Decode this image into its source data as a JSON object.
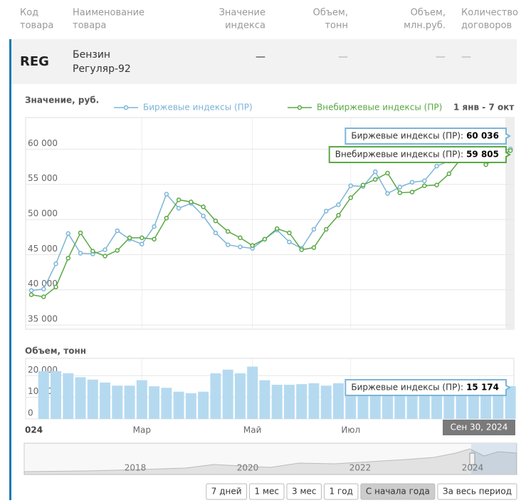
{
  "table": {
    "header": [
      [
        "Код",
        "товара"
      ],
      [
        "Наименование",
        "товара"
      ],
      [
        "Значение",
        "индекса"
      ],
      [
        "Объем,",
        "тонн"
      ],
      [
        "Объем,",
        "млн.руб."
      ],
      [
        "Количество",
        "договоров"
      ]
    ],
    "rows": [
      [
        "REG",
        [
          "Бензин",
          "Регуляр-92"
        ],
        "—",
        "—",
        "—",
        "—"
      ]
    ]
  },
  "chart_data": [
    {
      "type": "line",
      "title": "Значение, руб.",
      "period": "1 янв - 7 окт",
      "categories": [
        null,
        null,
        null,
        null,
        null,
        null,
        null,
        null,
        null,
        null,
        null,
        null,
        null,
        null,
        null,
        null,
        null,
        null,
        null,
        null,
        null,
        null,
        null,
        null,
        null,
        null,
        null,
        null,
        null,
        null,
        null,
        null,
        null,
        null,
        null,
        null,
        null,
        null,
        null,
        null
      ],
      "series": [
        {
          "name": "Биржевые индексы (ПР)",
          "tooltip_label": "Биржевые индексы (ПР):",
          "color": "#7cb5d8",
          "values": [
            39900,
            40100,
            43700,
            48000,
            45200,
            45100,
            45700,
            48400,
            47200,
            46500,
            49000,
            53600,
            51600,
            52300,
            50500,
            48100,
            46400,
            46100,
            45900,
            47200,
            48500,
            46800,
            45900,
            48600,
            51200,
            52100,
            54800,
            54700,
            56800,
            53700,
            54600,
            55300,
            55500,
            57600,
            58300,
            58900,
            59400,
            59400,
            59600,
            60036
          ],
          "value_labels": [
            null,
            null,
            null,
            null,
            null,
            null,
            null,
            null,
            null,
            null,
            null,
            null,
            null,
            null,
            null,
            null,
            null,
            null,
            null,
            null,
            null,
            null,
            null,
            null,
            null,
            null,
            null,
            null,
            null,
            null,
            null,
            null,
            null,
            null,
            null,
            null,
            null,
            null,
            null,
            "60 036"
          ]
        },
        {
          "name": "Внебиржевые индексы (ПР)",
          "tooltip_label": "Внебиржевые индексы (ПР):",
          "color": "#5ba845",
          "values": [
            39300,
            39000,
            40400,
            44500,
            48100,
            45500,
            44800,
            45600,
            47400,
            47400,
            47200,
            50200,
            52800,
            52500,
            51800,
            49800,
            48300,
            47400,
            46300,
            47200,
            48700,
            48100,
            45700,
            46000,
            48600,
            50600,
            53100,
            54900,
            55700,
            56600,
            53800,
            53900,
            54800,
            54900,
            56500,
            58700,
            59900,
            57800,
            58900,
            59805
          ],
          "value_labels": [
            null,
            null,
            null,
            null,
            null,
            null,
            null,
            null,
            null,
            null,
            null,
            null,
            null,
            null,
            null,
            null,
            null,
            null,
            null,
            null,
            null,
            null,
            null,
            null,
            null,
            null,
            null,
            null,
            null,
            null,
            null,
            null,
            null,
            null,
            null,
            null,
            null,
            null,
            null,
            "59 805"
          ]
        }
      ],
      "ylim": [
        34400,
        64500
      ],
      "yticks": [
        {
          "value": 35000,
          "label": "35 000"
        },
        {
          "value": 40000,
          "label": "40 000"
        },
        {
          "value": 45000,
          "label": "45 000"
        },
        {
          "value": 50000,
          "label": "50 000"
        },
        {
          "value": 55000,
          "label": "55 000"
        },
        {
          "value": 60000,
          "label": "60 000"
        }
      ],
      "grid": true
    },
    {
      "type": "bar",
      "title": "Объем, тонн",
      "categories": [
        "024",
        null,
        null,
        null,
        null,
        null,
        null,
        null,
        null,
        "Мар",
        null,
        null,
        null,
        null,
        null,
        null,
        null,
        null,
        "Май",
        null,
        null,
        null,
        null,
        null,
        null,
        null,
        "Июл",
        null,
        null,
        null,
        null,
        null,
        null,
        null,
        null,
        null,
        null,
        null,
        null,
        null
      ],
      "series": [
        {
          "name": "Биржевые индексы (ПР)",
          "tooltip_label": "Биржевые индексы (ПР):",
          "color": "#b5daf0",
          "values": [
            null,
            22100,
            22100,
            21100,
            19300,
            18200,
            16800,
            15400,
            15400,
            17900,
            15100,
            14400,
            12600,
            11900,
            12600,
            21100,
            22800,
            21100,
            24200,
            17900,
            15800,
            15800,
            16100,
            16500,
            15400,
            16500,
            15800,
            15800,
            16100,
            15600,
            15900,
            16200,
            15700,
            15500,
            15900,
            16000,
            15600,
            15300,
            15500,
            15174
          ],
          "value_labels": [
            null,
            null,
            null,
            null,
            null,
            null,
            null,
            null,
            null,
            null,
            null,
            null,
            null,
            null,
            null,
            null,
            null,
            null,
            null,
            null,
            null,
            null,
            null,
            null,
            null,
            null,
            null,
            null,
            null,
            null,
            null,
            null,
            null,
            null,
            null,
            null,
            null,
            null,
            null,
            "15 174"
          ]
        }
      ],
      "ylim": [
        0,
        28000
      ],
      "yticks": [
        0,
        {
          "value": 10000,
          "label": "10 000"
        },
        {
          "value": 20000,
          "label": "20 000"
        }
      ],
      "grid": true
    }
  ],
  "date_label": "Сен 30, 2024",
  "navigator": {
    "labels": [
      "2018",
      "2020",
      "2022",
      "2024"
    ]
  },
  "range_buttons": {
    "items": [
      "7 дней",
      "1 мес",
      "3 мес",
      "1 год",
      "С начала года",
      "За весь период"
    ],
    "active": 4
  }
}
